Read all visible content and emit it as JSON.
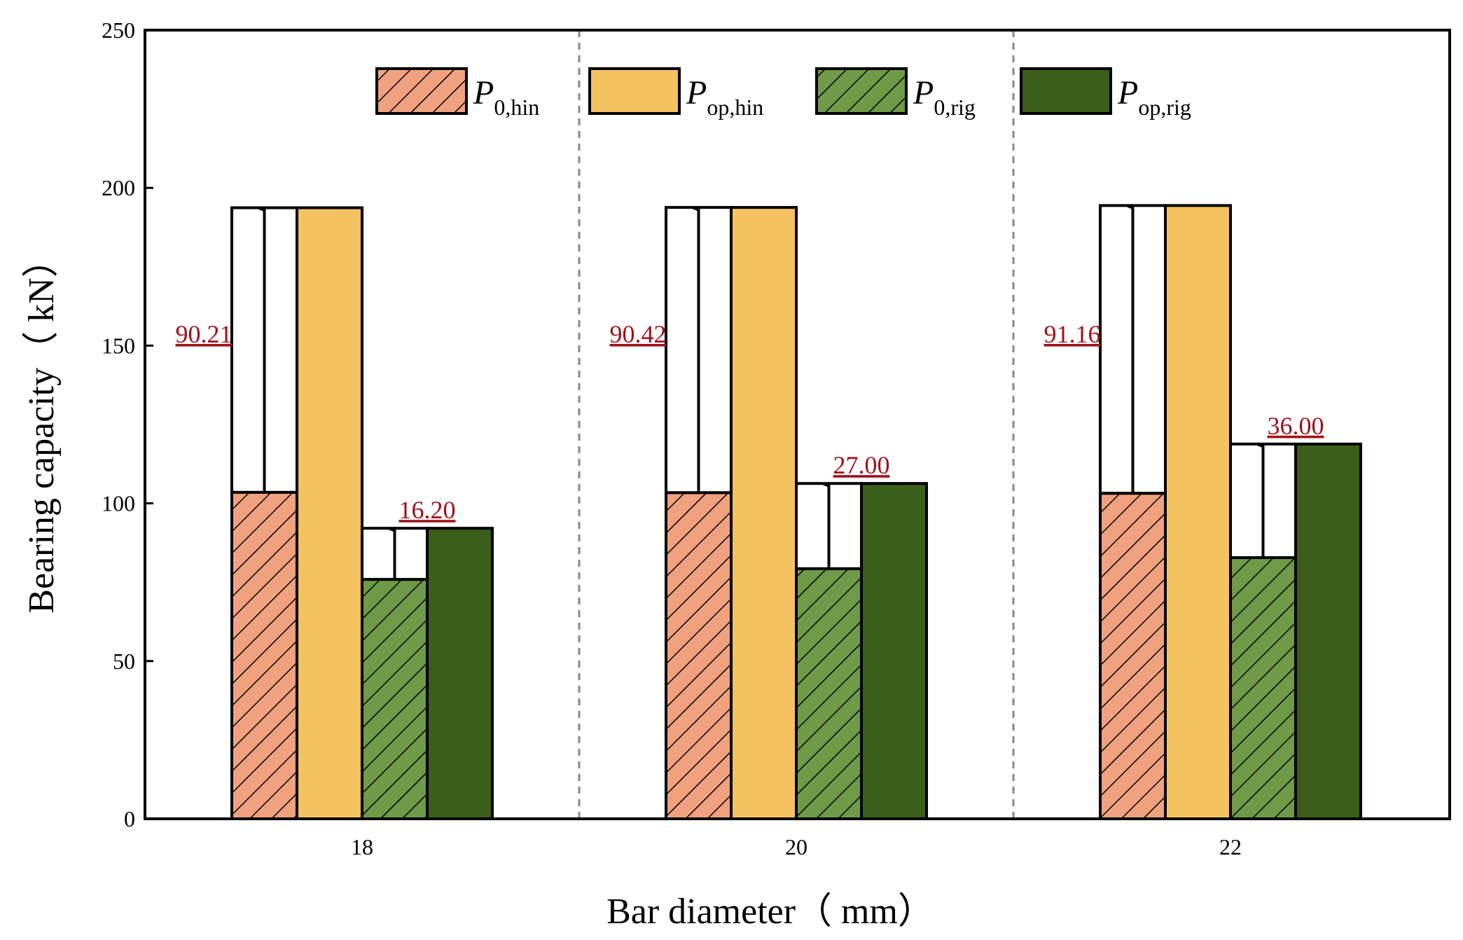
{
  "chart_data": {
    "type": "bar",
    "categories": [
      "18",
      "20",
      "22"
    ],
    "xlabel": "Bar diameter（ mm）",
    "ylabel": "Bearing capacity（ kN）",
    "ylim": [
      0,
      250
    ],
    "yticks": [
      "0",
      "50",
      "100",
      "150",
      "200",
      "250"
    ],
    "grid": false,
    "legend_position": "top",
    "series": [
      {
        "name": "P",
        "sub": "0,hin",
        "values": [
          103.5,
          103.4,
          103.2
        ],
        "color": "#f0a27f",
        "hatched": true
      },
      {
        "name": "P",
        "sub": "op,hin",
        "values": [
          193.7,
          193.8,
          194.4
        ],
        "color": "#f5c262",
        "hatched": false
      },
      {
        "name": "P",
        "sub": "0,rig",
        "values": [
          75.9,
          79.3,
          82.8
        ],
        "color": "#6f9a47",
        "hatched": true
      },
      {
        "name": "P",
        "sub": "op,rig",
        "values": [
          92.1,
          106.3,
          118.8
        ],
        "color": "#3b5e1b",
        "hatched": false
      }
    ],
    "annotations": {
      "hinged_increase": [
        "90.21",
        "90.42",
        "91.16"
      ],
      "rigid_increase": [
        "16.20",
        "27.00",
        "36.00"
      ],
      "color": "#a0121a"
    },
    "group_separators": "dashed"
  }
}
